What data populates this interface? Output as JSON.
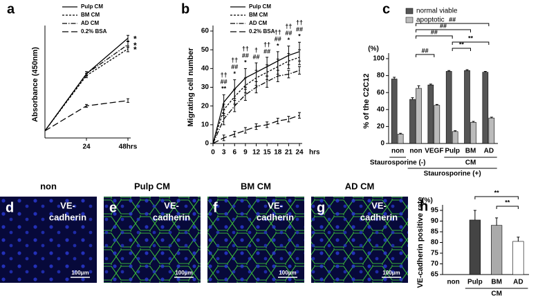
{
  "chart_data": [
    {
      "type": "line",
      "label": "a",
      "ylabel": "Absorbance (450nm)",
      "x": [
        0,
        24,
        48
      ],
      "xlim": [
        0,
        48
      ],
      "xticks": [
        24,
        {
          "value": 48,
          "label": "48hrs"
        }
      ],
      "ylim": [
        0,
        3
      ],
      "series": [
        {
          "name": "Pulp  CM",
          "color": "#000000",
          "dash": "solid",
          "values": [
            0.2,
            1.8,
            2.8
          ],
          "errors": [
            0,
            0.06,
            0.08
          ],
          "sig": "*"
        },
        {
          "name": "BM CM",
          "color": "#000000",
          "dash": "dotted",
          "values": [
            0.2,
            1.75,
            2.5
          ],
          "errors": [
            0,
            0.06,
            0.08
          ],
          "sig": "*"
        },
        {
          "name": "AD CM",
          "color": "#000000",
          "dash": "dashdot",
          "values": [
            0.2,
            1.8,
            2.62
          ],
          "errors": [
            0,
            0.06,
            0.08
          ],
          "sig": "*"
        },
        {
          "name": "0.2% BSA",
          "color": "#000000",
          "dash": "dashed",
          "values": [
            0.2,
            0.9,
            1.05
          ],
          "errors": [
            0,
            0.04,
            0.05
          ]
        }
      ]
    },
    {
      "type": "line",
      "label": "b",
      "ylabel": "Migrating cell number",
      "xlabel": "hrs",
      "x": [
        0,
        3,
        6,
        9,
        12,
        15,
        18,
        21,
        24
      ],
      "xlim": [
        0,
        24
      ],
      "xticks": [
        0,
        3,
        6,
        9,
        12,
        15,
        18,
        21,
        24
      ],
      "ylim": [
        0,
        60
      ],
      "yticks": [
        0,
        10,
        20,
        30,
        40,
        50,
        60
      ],
      "series": [
        {
          "name": "Pulp CM",
          "color": "#000000",
          "dash": "solid",
          "values": [
            0,
            22,
            29,
            35,
            38,
            41,
            44,
            47,
            49
          ],
          "errors": [
            0,
            4,
            5,
            5,
            5,
            5,
            5,
            5,
            5
          ]
        },
        {
          "name": "BM CM",
          "color": "#000000",
          "dash": "dotted",
          "values": [
            0,
            18,
            25,
            31,
            35,
            38,
            41,
            44,
            46
          ],
          "errors": [
            0,
            3,
            4,
            4,
            4,
            4,
            4,
            4,
            4
          ]
        },
        {
          "name": "AD CM",
          "color": "#000000",
          "dash": "dashdot",
          "values": [
            0,
            13,
            20,
            26,
            30,
            33,
            36,
            37,
            39
          ],
          "errors": [
            0,
            3,
            3,
            3,
            3,
            3,
            3,
            2,
            2
          ]
        },
        {
          "name": "0.2% BSA",
          "color": "#000000",
          "dash": "dashed",
          "values": [
            0,
            3,
            5,
            7,
            9,
            10,
            12,
            13,
            15
          ],
          "errors": [
            0,
            1.5,
            1.5,
            1.5,
            1.5,
            1.5,
            1.5,
            1.5,
            1.5
          ]
        }
      ],
      "annotations": [
        {
          "x": 3,
          "lines": [
            "††",
            "##",
            "**"
          ]
        },
        {
          "x": 6,
          "lines": [
            "††",
            "##",
            "*"
          ]
        },
        {
          "x": 9,
          "lines": [
            "††",
            "##",
            "*"
          ]
        },
        {
          "x": 12,
          "lines": [
            "†",
            "##"
          ]
        },
        {
          "x": 15,
          "lines": [
            "††",
            "##"
          ]
        },
        {
          "x": 18,
          "lines": [
            "††",
            "##",
            "*"
          ]
        },
        {
          "x": 21,
          "lines": [
            "††",
            "##",
            "*"
          ]
        },
        {
          "x": 24,
          "lines": [
            "††",
            "##",
            "*"
          ]
        }
      ]
    },
    {
      "type": "bar",
      "label": "c",
      "ylabel": "% of the C2C12",
      "unit": "(%)",
      "categories": [
        "non",
        "non",
        "VEGF",
        "Pulp",
        "BM",
        "AD"
      ],
      "ylim": [
        0,
        100
      ],
      "yticks": [
        0,
        20,
        40,
        60,
        80,
        100
      ],
      "series": [
        {
          "name": "normal viable",
          "color": "#555555",
          "values": [
            76,
            52,
            69,
            85,
            86,
            84
          ],
          "errors": [
            2,
            2,
            1,
            1,
            1,
            1
          ]
        },
        {
          "name": "apoptotic",
          "color": "#bbbbbb",
          "values": [
            11,
            65,
            45,
            14,
            25,
            30
          ],
          "errors": [
            1,
            3,
            1,
            1,
            1,
            1
          ]
        }
      ],
      "groups": [
        {
          "label": "Staurosporine (-)",
          "from": 0,
          "to": 0
        },
        {
          "label": "Staurosporine (+)",
          "from": 1,
          "to": 5
        },
        {
          "label": "CM",
          "from": 3,
          "to": 5
        }
      ],
      "brackets": [
        {
          "from": 1,
          "to": 2,
          "label": "##"
        },
        {
          "from": 3,
          "to": 4,
          "label": "**"
        },
        {
          "from": 3,
          "to": 5,
          "label": "**"
        },
        {
          "from": 1,
          "to": 3,
          "label": "##"
        },
        {
          "from": 1,
          "to": 4,
          "label": "##"
        },
        {
          "from": 1,
          "to": 5,
          "label": "##"
        }
      ]
    },
    {
      "type": "bar",
      "label": "h",
      "ylabel": "VE-cadherin positive rate",
      "unit": "(%)",
      "categories": [
        "non",
        "Pulp",
        "BM",
        "AD"
      ],
      "ylim": [
        65,
        95
      ],
      "yticks": [
        65,
        70,
        75,
        80,
        85,
        90,
        95
      ],
      "values": [
        null,
        90.5,
        88,
        80.5
      ],
      "errors": [
        null,
        4.5,
        3.5,
        2
      ],
      "colors": [
        "#444444",
        "#444444",
        "#aaaaaa",
        "#ffffff"
      ],
      "groups": [
        {
          "label": "CM",
          "from": 1,
          "to": 3
        }
      ],
      "brackets": [
        {
          "from": 2,
          "to": 3,
          "label": "**"
        },
        {
          "from": 1,
          "to": 3,
          "label": "**"
        }
      ]
    }
  ],
  "images": [
    {
      "letter": "d",
      "title": "non",
      "stain": [
        "VE-",
        "cadherin"
      ],
      "scale": "100μm"
    },
    {
      "letter": "e",
      "title": "Pulp CM",
      "stain": [
        "VE-",
        "cadherin"
      ],
      "scale": "100μm"
    },
    {
      "letter": "f",
      "title": "BM CM",
      "stain": [
        "VE-",
        "cadherin"
      ],
      "scale": "100μm"
    },
    {
      "letter": "g",
      "title": "AD CM",
      "stain": [
        "VE-",
        "cadherin"
      ],
      "scale": "100μm"
    }
  ]
}
